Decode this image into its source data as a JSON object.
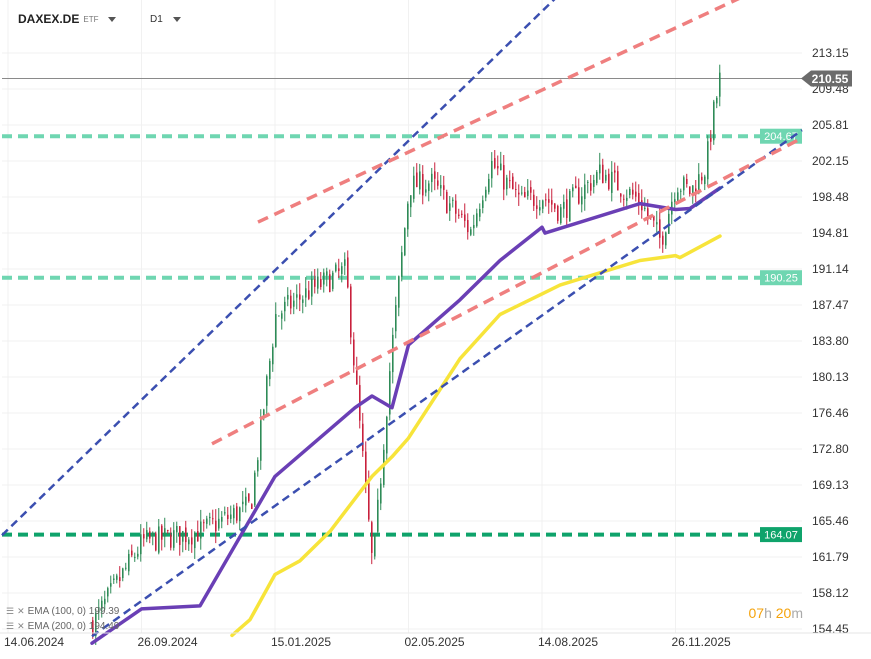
{
  "header": {
    "symbol": "DAXEX.DE",
    "symbol_type": "ETF",
    "timeframe": "D1"
  },
  "countdown": {
    "hours": "07",
    "h_unit": "h",
    "minutes": "20",
    "m_unit": "m"
  },
  "legend": [
    {
      "label": "EMA (100, 0) 199.39",
      "color": "#6a3fb5"
    },
    {
      "label": "EMA (200, 0) 194.49",
      "color": "#f7e43a"
    }
  ],
  "colors": {
    "up": "#2e8b57",
    "down": "#c8203c",
    "ema100": "#6a3fb5",
    "ema200": "#f7e43a",
    "blue_channel": "#3b4fb0",
    "red_channel": "#ef7f7f",
    "level_light": "#6fd6b1",
    "level_dark": "#0fa36b",
    "price_badge": "#6b6b6b"
  },
  "chart_data": {
    "type": "candlestick",
    "instrument": "DAXEX.DE",
    "timeframe": "D1",
    "y_axis": {
      "ticks": [
        213.15,
        209.48,
        205.81,
        202.15,
        198.48,
        194.81,
        191.14,
        187.47,
        183.8,
        180.13,
        176.46,
        172.8,
        169.13,
        165.46,
        161.79,
        158.12,
        154.45
      ],
      "range": [
        154.45,
        213.15
      ]
    },
    "x_axis": {
      "ticks": [
        "14.06.2024",
        "26.09.2024",
        "15.01.2025",
        "02.05.2025",
        "14.08.2025",
        "26.11.2025"
      ]
    },
    "current_price": 210.55,
    "horizontal_levels": [
      {
        "value": 204.67,
        "label": "204.67",
        "style": "light"
      },
      {
        "value": 190.25,
        "label": "190.25",
        "style": "light"
      },
      {
        "value": 164.07,
        "label": "164.07",
        "style": "dark"
      }
    ],
    "trendlines": [
      {
        "name": "blue-upper",
        "color": "blue",
        "points": [
          [
            "14.06.2024",
            164.6
          ],
          [
            "15.01.2025",
            194.2
          ],
          [
            "02.05.2025",
            204.2
          ]
        ]
      },
      {
        "name": "blue-lower",
        "color": "blue",
        "points": [
          [
            "26.09.2024",
            157.3
          ],
          [
            "02.05.2025",
            175.6
          ],
          [
            "26.11.2025",
            196.1
          ]
        ]
      },
      {
        "name": "red-upper",
        "color": "red",
        "points": [
          [
            "26.09.2024",
            190.4
          ],
          [
            "02.05.2025",
            204.1
          ],
          [
            "26.11.2025",
            215.7
          ]
        ]
      },
      {
        "name": "red-lower",
        "color": "red",
        "points": [
          [
            "26.09.2024",
            169.6
          ],
          [
            "02.05.2025",
            183.4
          ],
          [
            "26.11.2025",
            197.8
          ]
        ]
      }
    ],
    "series": [
      {
        "name": "Close (approx.)",
        "type": "candlestick",
        "values": [
          [
            "26.09.2024",
            163.3
          ],
          [
            "15.01.2025",
            186.4
          ],
          [
            "02.05.2025",
            199.6
          ],
          [
            "14.08.2025",
            198.6
          ],
          [
            "26.11.2025",
            200.0
          ]
        ]
      },
      {
        "name": "EMA (100, 0)",
        "values": [
          [
            "26.09.2024",
            156.5
          ],
          [
            "15.01.2025",
            170.0
          ],
          [
            "02.05.2025",
            183.4
          ],
          [
            "14.08.2025",
            195.4
          ],
          [
            "26.11.2025",
            197.2
          ]
        ]
      },
      {
        "name": "EMA (200, 0)",
        "values": [
          [
            "15.01.2025",
            160.0
          ],
          [
            "02.05.2025",
            173.9
          ],
          [
            "14.08.2025",
            188.6
          ],
          [
            "26.11.2025",
            192.5
          ]
        ]
      }
    ]
  }
}
